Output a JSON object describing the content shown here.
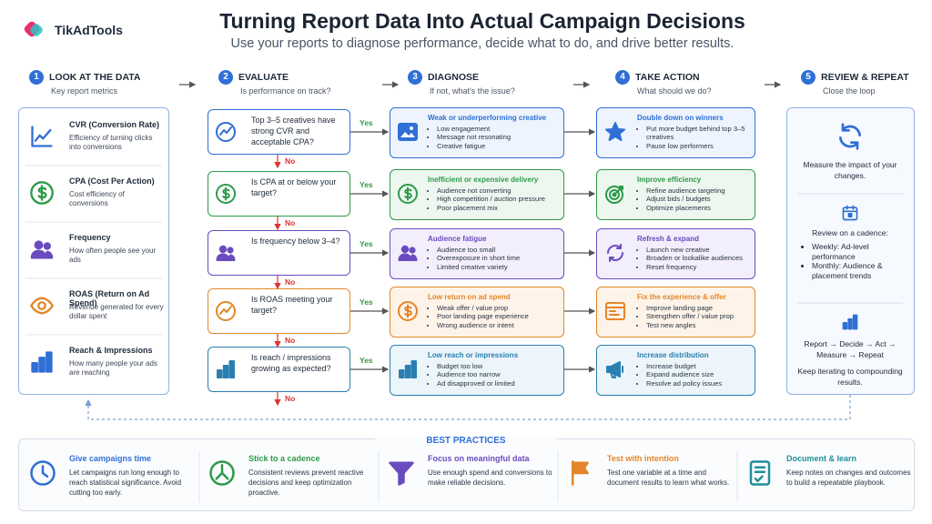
{
  "brand": {
    "name": "TikAdTools"
  },
  "header": {
    "title": "Turning Report Data Into Actual Campaign Decisions",
    "subtitle": "Use your reports to diagnose performance, decide what to do, and drive better results."
  },
  "steps": [
    {
      "number": 1,
      "title": "LOOK AT THE DATA",
      "subtitle": "Key report metrics"
    },
    {
      "number": 2,
      "title": "EVALUATE",
      "subtitle": "Is performance on track?"
    },
    {
      "number": 3,
      "title": "DIAGNOSE",
      "subtitle": "If not, what's the issue?"
    },
    {
      "number": 4,
      "title": "TAKE ACTION",
      "subtitle": "What should we do?"
    },
    {
      "number": 5,
      "title": "REVIEW & REPEAT",
      "subtitle": "Close the loop"
    }
  ],
  "metrics": [
    {
      "title": "CVR (Conversion Rate)",
      "description": "Efficiency of turning clicks into conversions"
    },
    {
      "title": "CPA (Cost Per Action)",
      "description": "Cost efficiency of conversions"
    },
    {
      "title": "Frequency",
      "description": "How often people see your ads"
    },
    {
      "title": "ROAS (Return on Ad Spend)",
      "description": "Revenue generated for every dollar spent"
    },
    {
      "title": "Reach & Impressions",
      "description": "How many people your ads are reaching"
    }
  ],
  "evaluate": {
    "yes_label": "Yes",
    "no_label": "No",
    "questions": [
      "Top 3–5 creatives have strong CVR and acceptable CPA?",
      "Is CPA at or below your target?",
      "Is frequency below 3–4?",
      "Is ROAS meeting your target?",
      "Is reach / impressions growing as expected?"
    ]
  },
  "diagnose": [
    {
      "title": "Weak or underperforming creative",
      "items": [
        "Low engagement",
        "Message not resonating",
        "Creative fatigue"
      ]
    },
    {
      "title": "Inefficient or expensive delivery",
      "items": [
        "Audience not converting",
        "High competition / auction pressure",
        "Poor placement mix"
      ]
    },
    {
      "title": "Audience fatigue",
      "items": [
        "Audience too small",
        "Overexposure in short time",
        "Limited creative variety"
      ]
    },
    {
      "title": "Low return on ad spend",
      "items": [
        "Weak offer / value prop",
        "Poor landing page experience",
        "Wrong audience or intent"
      ]
    },
    {
      "title": "Low reach or impressions",
      "items": [
        "Budget too low",
        "Audience too narrow",
        "Ad disapproved or limited"
      ]
    }
  ],
  "actions": [
    {
      "title": "Double down on winners",
      "items": [
        "Put more budget behind top 3–5 creatives",
        "Pause low performers"
      ]
    },
    {
      "title": "Improve efficiency",
      "items": [
        "Refine audience targeting",
        "Adjust bids / budgets",
        "Optimize placements"
      ]
    },
    {
      "title": "Refresh & expand",
      "items": [
        "Launch new creative",
        "Broaden or lookalike audiences",
        "Reset frequency"
      ]
    },
    {
      "title": "Fix the experience & offer",
      "items": [
        "Improve landing page",
        "Strengthen offer / value prop",
        "Test new angles"
      ]
    },
    {
      "title": "Increase distribution",
      "items": [
        "Increase budget",
        "Expand audience size",
        "Resolve ad policy issues"
      ]
    }
  ],
  "review": {
    "impact": "Measure the impact of your changes.",
    "cadence_title": "Review on a cadence:",
    "cadence_items": [
      "Weekly: Ad-level performance",
      "Monthly: Audience & placement trends"
    ],
    "loop": "Report → Decide → Act → Measure → Repeat",
    "closing": "Keep iterating to compounding results."
  },
  "best_practices": {
    "title": "BEST PRACTICES",
    "items": [
      {
        "title": "Give campaigns time",
        "description": "Let campaigns run long enough to reach statistical significance. Avoid cutting too early."
      },
      {
        "title": "Stick to a cadence",
        "description": "Consistent reviews prevent reactive decisions and keep optimization proactive."
      },
      {
        "title": "Focus on meaningful data",
        "description": "Use enough spend and conversions to make reliable decisions."
      },
      {
        "title": "Test with intention",
        "description": "Test one variable at a time and document results to learn what works."
      },
      {
        "title": "Document & learn",
        "description": "Keep notes on changes and outcomes to build a repeatable playbook."
      }
    ]
  }
}
